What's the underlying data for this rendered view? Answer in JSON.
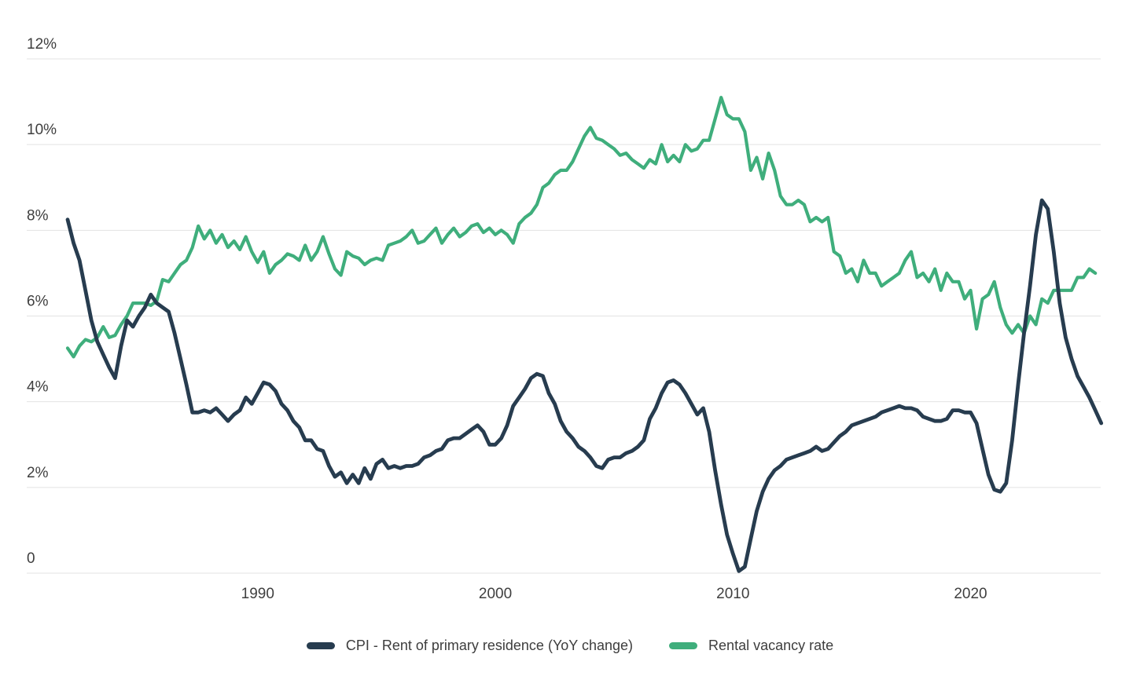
{
  "chart_data": {
    "type": "line",
    "title": "",
    "xlabel": "",
    "ylabel": "",
    "grid": true,
    "legend_position": "bottom",
    "ylim": [
      0,
      12
    ],
    "x_start_year": 1982.0,
    "x_step_years": 0.25,
    "y_ticks": [
      {
        "label": "0",
        "value": 0
      },
      {
        "label": "2%",
        "value": 2
      },
      {
        "label": "4%",
        "value": 4
      },
      {
        "label": "6%",
        "value": 6
      },
      {
        "label": "8%",
        "value": 8
      },
      {
        "label": "10%",
        "value": 10
      },
      {
        "label": "12%",
        "value": 12
      }
    ],
    "x_ticks": [
      {
        "label": "1990",
        "year": 1990
      },
      {
        "label": "2000",
        "year": 2000
      },
      {
        "label": "2010",
        "year": 2010
      },
      {
        "label": "2020",
        "year": 2020
      }
    ],
    "series": [
      {
        "name": "CPI - Rent of primary residence (YoY change)",
        "color": "#273c4f",
        "unit": "%",
        "frequency": "quarterly",
        "values": [
          8.25,
          7.7,
          7.3,
          6.6,
          5.9,
          5.4,
          5.1,
          4.8,
          4.55,
          5.3,
          5.9,
          5.75,
          6.0,
          6.2,
          6.5,
          6.3,
          6.2,
          6.1,
          5.6,
          5.0,
          4.4,
          3.75,
          3.75,
          3.8,
          3.75,
          3.85,
          3.7,
          3.55,
          3.7,
          3.8,
          4.1,
          3.95,
          4.2,
          4.45,
          4.4,
          4.25,
          3.95,
          3.8,
          3.55,
          3.4,
          3.1,
          3.1,
          2.9,
          2.85,
          2.5,
          2.25,
          2.35,
          2.1,
          2.3,
          2.1,
          2.45,
          2.2,
          2.55,
          2.65,
          2.45,
          2.5,
          2.45,
          2.5,
          2.5,
          2.55,
          2.7,
          2.75,
          2.85,
          2.9,
          3.1,
          3.15,
          3.15,
          3.25,
          3.35,
          3.45,
          3.3,
          3.0,
          3.0,
          3.15,
          3.45,
          3.9,
          4.1,
          4.3,
          4.55,
          4.65,
          4.6,
          4.2,
          3.95,
          3.55,
          3.3,
          3.15,
          2.95,
          2.85,
          2.7,
          2.5,
          2.45,
          2.65,
          2.7,
          2.7,
          2.8,
          2.85,
          2.95,
          3.1,
          3.6,
          3.85,
          4.2,
          4.45,
          4.5,
          4.4,
          4.2,
          3.95,
          3.7,
          3.85,
          3.3,
          2.4,
          1.6,
          0.9,
          0.45,
          0.05,
          0.15,
          0.8,
          1.45,
          1.9,
          2.2,
          2.4,
          2.5,
          2.65,
          2.7,
          2.75,
          2.8,
          2.85,
          2.95,
          2.85,
          2.9,
          3.05,
          3.2,
          3.3,
          3.45,
          3.5,
          3.55,
          3.6,
          3.65,
          3.75,
          3.8,
          3.85,
          3.9,
          3.85,
          3.85,
          3.8,
          3.65,
          3.6,
          3.55,
          3.55,
          3.6,
          3.8,
          3.8,
          3.75,
          3.75,
          3.5,
          2.9,
          2.3,
          1.95,
          1.9,
          2.1,
          3.1,
          4.4,
          5.6,
          6.7,
          7.9,
          8.7,
          8.5,
          7.5,
          6.3,
          5.5,
          5.0,
          4.6,
          4.35,
          4.1,
          3.8,
          3.5
        ]
      },
      {
        "name": "Rental vacancy rate",
        "color": "#3fae7c",
        "unit": "%",
        "frequency": "quarterly",
        "values": [
          5.25,
          5.05,
          5.3,
          5.45,
          5.4,
          5.5,
          5.75,
          5.5,
          5.55,
          5.8,
          6.0,
          6.3,
          6.3,
          6.3,
          6.25,
          6.35,
          6.85,
          6.8,
          7.0,
          7.2,
          7.3,
          7.6,
          8.1,
          7.8,
          8.0,
          7.7,
          7.9,
          7.6,
          7.75,
          7.55,
          7.85,
          7.5,
          7.25,
          7.5,
          7.0,
          7.2,
          7.3,
          7.45,
          7.4,
          7.3,
          7.65,
          7.3,
          7.5,
          7.85,
          7.45,
          7.1,
          6.95,
          7.5,
          7.4,
          7.35,
          7.2,
          7.3,
          7.35,
          7.3,
          7.65,
          7.7,
          7.75,
          7.85,
          8.0,
          7.7,
          7.75,
          7.9,
          8.05,
          7.7,
          7.9,
          8.05,
          7.85,
          7.95,
          8.1,
          8.15,
          7.95,
          8.05,
          7.9,
          8.0,
          7.9,
          7.7,
          8.15,
          8.3,
          8.4,
          8.6,
          9.0,
          9.1,
          9.3,
          9.4,
          9.4,
          9.6,
          9.9,
          10.2,
          10.4,
          10.15,
          10.1,
          10.0,
          9.9,
          9.75,
          9.8,
          9.65,
          9.55,
          9.45,
          9.65,
          9.55,
          10.0,
          9.6,
          9.75,
          9.6,
          10.0,
          9.85,
          9.9,
          10.1,
          10.1,
          10.6,
          11.1,
          10.7,
          10.6,
          10.6,
          10.3,
          9.4,
          9.7,
          9.2,
          9.8,
          9.4,
          8.8,
          8.6,
          8.6,
          8.7,
          8.6,
          8.2,
          8.3,
          8.2,
          8.3,
          7.5,
          7.4,
          7.0,
          7.1,
          6.8,
          7.3,
          7.0,
          7.0,
          6.7,
          6.8,
          6.9,
          7.0,
          7.3,
          7.5,
          6.9,
          7.0,
          6.8,
          7.1,
          6.6,
          7.0,
          6.8,
          6.8,
          6.4,
          6.6,
          5.7,
          6.4,
          6.5,
          6.8,
          6.2,
          5.8,
          5.6,
          5.8,
          5.6,
          6.0,
          5.8,
          6.4,
          6.3,
          6.6,
          6.6,
          6.6,
          6.6,
          6.9,
          6.9,
          7.1,
          7.0
        ]
      }
    ]
  },
  "legend": {
    "items": [
      {
        "label": "CPI - Rent of primary residence (YoY change)",
        "color": "#273c4f"
      },
      {
        "label": "Rental vacancy rate",
        "color": "#3fae7c"
      }
    ]
  },
  "colors": {
    "background": "#ffffff",
    "gridline": "#e3e3e3",
    "axis_text": "#3f3f3f"
  }
}
